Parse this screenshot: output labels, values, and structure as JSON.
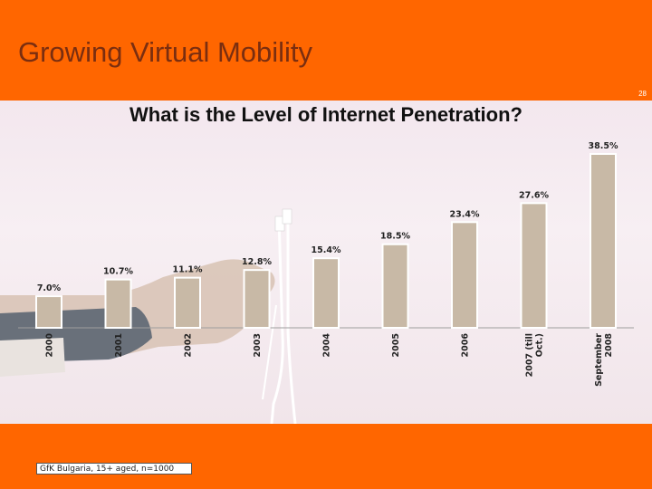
{
  "slide": {
    "title": "Growing Virtual Mobility",
    "number": "28",
    "source": "GfK Bulgaria, 15+ aged, n=1000"
  },
  "colors": {
    "orange": "#ff6600",
    "bar": "#c8b9a6",
    "title_text": "#7a2e10"
  },
  "chart_data": {
    "type": "bar",
    "title": "What is the Level of Internet Penetration?",
    "categories": [
      "2000",
      "2001",
      "2002",
      "2003",
      "2004",
      "2005",
      "2006",
      "2007 (till Oct.)",
      "September 2008"
    ],
    "category_lines": [
      [
        "2000"
      ],
      [
        "2001"
      ],
      [
        "2002"
      ],
      [
        "2003"
      ],
      [
        "2004"
      ],
      [
        "2005"
      ],
      [
        "2006"
      ],
      [
        "2007 (till",
        "Oct.)"
      ],
      [
        "September",
        "2008"
      ]
    ],
    "values": [
      7.0,
      10.7,
      11.1,
      12.8,
      15.4,
      18.5,
      23.4,
      27.6,
      38.5
    ],
    "value_labels": [
      "7.0%",
      "10.7%",
      "11.1%",
      "12.8%",
      "15.4%",
      "18.5%",
      "23.4%",
      "27.6%",
      "38.5%"
    ],
    "unit": "%",
    "ylim": [
      0,
      40
    ],
    "xlabel": "",
    "ylabel": "",
    "grid": false,
    "legend": "none"
  }
}
